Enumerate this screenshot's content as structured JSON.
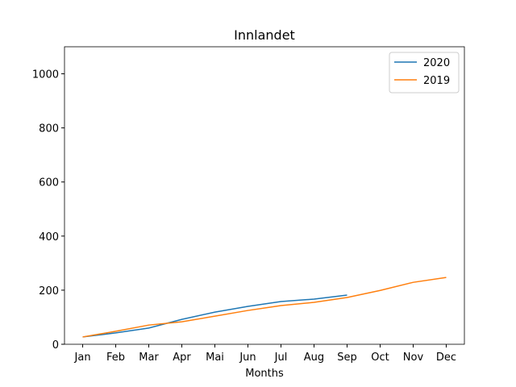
{
  "chart_data": {
    "type": "line",
    "title": "Innlandet",
    "xlabel": "Months",
    "categories": [
      "Jan",
      "Feb",
      "Mar",
      "Apr",
      "Mai",
      "Jun",
      "Jul",
      "Aug",
      "Sep",
      "Oct",
      "Nov",
      "Dec"
    ],
    "series": [
      {
        "name": "2020",
        "color": "#1f77b4",
        "values": [
          27,
          42,
          60,
          92,
          119,
          140,
          158,
          167,
          182,
          null,
          null,
          null
        ]
      },
      {
        "name": "2019",
        "color": "#ff7f0e",
        "values": [
          27,
          48,
          71,
          83,
          104,
          125,
          143,
          155,
          173,
          199,
          229,
          247
        ]
      }
    ],
    "ylim": [
      0,
      1100
    ],
    "yticks": [
      0,
      200,
      400,
      600,
      800,
      1000
    ],
    "legend": "upper right"
  }
}
